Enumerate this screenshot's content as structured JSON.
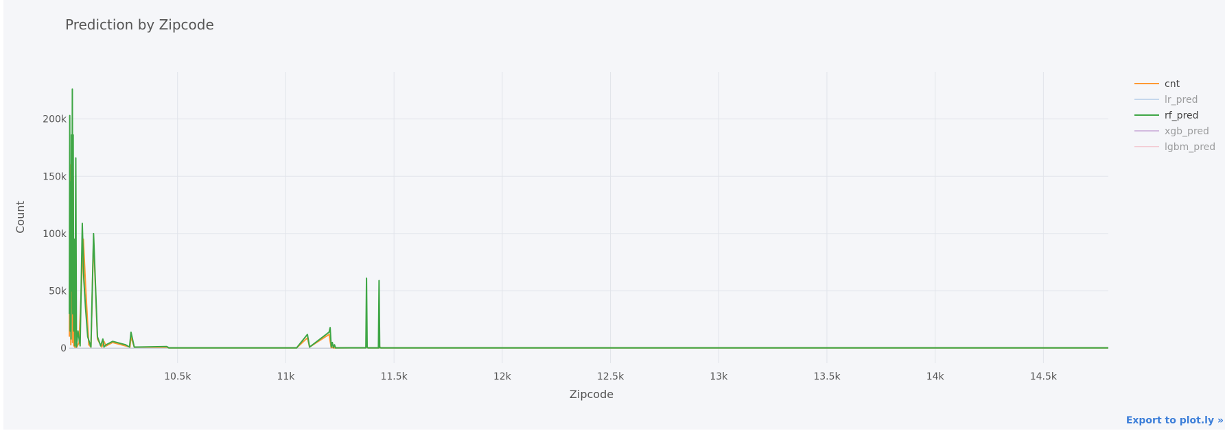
{
  "chart_data": {
    "type": "line",
    "title": "Prediction by Zipcode",
    "xlabel": "Zipcode",
    "ylabel": "Count",
    "xlim": [
      10000,
      14800
    ],
    "ylim": [
      -13000,
      241000
    ],
    "x_ticks": [
      10500,
      11000,
      11500,
      12000,
      12500,
      13000,
      13500,
      14000,
      14500
    ],
    "x_tick_labels": [
      "10.5k",
      "11k",
      "11.5k",
      "12k",
      "12.5k",
      "13k",
      "13.5k",
      "14k",
      "14.5k"
    ],
    "y_ticks": [
      0,
      50000,
      100000,
      150000,
      200000
    ],
    "y_tick_labels": [
      "0",
      "50k",
      "100k",
      "150k",
      "200k"
    ],
    "grid": true,
    "legend_position": "top-right",
    "series": [
      {
        "name": "cnt",
        "color": "#ff9933",
        "visible": true,
        "points": [
          [
            10000,
            10000
          ],
          [
            10004,
            160000
          ],
          [
            10007,
            3000
          ],
          [
            10010,
            90000
          ],
          [
            10012,
            185000
          ],
          [
            10015,
            5000
          ],
          [
            10018,
            150000
          ],
          [
            10020,
            2000
          ],
          [
            10023,
            60000
          ],
          [
            10025,
            1000
          ],
          [
            10035,
            1000
          ],
          [
            10045,
            5000
          ],
          [
            10065,
            95000
          ],
          [
            10075,
            55000
          ],
          [
            10090,
            3000
          ],
          [
            10100,
            1000
          ],
          [
            10112,
            95000
          ],
          [
            10130,
            8000
          ],
          [
            10150,
            1000
          ],
          [
            10160,
            6000
          ],
          [
            10170,
            2000
          ],
          [
            10200,
            5000
          ],
          [
            10280,
            1000
          ],
          [
            10285,
            10000
          ],
          [
            10300,
            1000
          ],
          [
            10450,
            1000
          ],
          [
            10460,
            300
          ],
          [
            11050,
            300
          ],
          [
            11100,
            9000
          ],
          [
            11110,
            1000
          ],
          [
            11200,
            12000
          ],
          [
            11210,
            500
          ],
          [
            11215,
            1000
          ],
          [
            11220,
            300
          ],
          [
            11370,
            400
          ],
          [
            11375,
            1000
          ],
          [
            11380,
            300
          ],
          [
            11430,
            300
          ],
          [
            11435,
            1000
          ],
          [
            11440,
            300
          ],
          [
            14800,
            300
          ]
        ]
      },
      {
        "name": "lr_pred",
        "color": "#96b9e0",
        "visible": false,
        "points": []
      },
      {
        "name": "rf_pred",
        "color": "#3ea645",
        "visible": true,
        "points": [
          [
            10000,
            30000
          ],
          [
            10002,
            203000
          ],
          [
            10004,
            15000
          ],
          [
            10006,
            145000
          ],
          [
            10008,
            8000
          ],
          [
            10010,
            186000
          ],
          [
            10012,
            50000
          ],
          [
            10014,
            226000
          ],
          [
            10016,
            30000
          ],
          [
            10018,
            186000
          ],
          [
            10020,
            15000
          ],
          [
            10023,
            95000
          ],
          [
            10026,
            2000
          ],
          [
            10030,
            166000
          ],
          [
            10033,
            1000
          ],
          [
            10040,
            15000
          ],
          [
            10050,
            2000
          ],
          [
            10060,
            109000
          ],
          [
            10067,
            60000
          ],
          [
            10075,
            35000
          ],
          [
            10085,
            10000
          ],
          [
            10100,
            1000
          ],
          [
            10112,
            100000
          ],
          [
            10130,
            10000
          ],
          [
            10145,
            2000
          ],
          [
            10155,
            8000
          ],
          [
            10160,
            1000
          ],
          [
            10170,
            3000
          ],
          [
            10200,
            6000
          ],
          [
            10260,
            3000
          ],
          [
            10278,
            1000
          ],
          [
            10285,
            14000
          ],
          [
            10300,
            1000
          ],
          [
            10450,
            1500
          ],
          [
            10460,
            300
          ],
          [
            11050,
            300
          ],
          [
            11100,
            12000
          ],
          [
            11110,
            1000
          ],
          [
            11200,
            14000
          ],
          [
            11205,
            18000
          ],
          [
            11210,
            1000
          ],
          [
            11215,
            5000
          ],
          [
            11220,
            500
          ],
          [
            11225,
            3000
          ],
          [
            11230,
            300
          ],
          [
            11370,
            400
          ],
          [
            11373,
            61000
          ],
          [
            11376,
            1000
          ],
          [
            11380,
            300
          ],
          [
            11428,
            300
          ],
          [
            11431,
            59000
          ],
          [
            11434,
            500
          ],
          [
            11440,
            300
          ],
          [
            14800,
            300
          ]
        ]
      },
      {
        "name": "xgb_pred",
        "color": "#b27fc6",
        "visible": false,
        "points": []
      },
      {
        "name": "lgbm_pred",
        "color": "#f2a8b5",
        "visible": false,
        "points": []
      }
    ]
  },
  "export_link": "Export to plot.ly »"
}
